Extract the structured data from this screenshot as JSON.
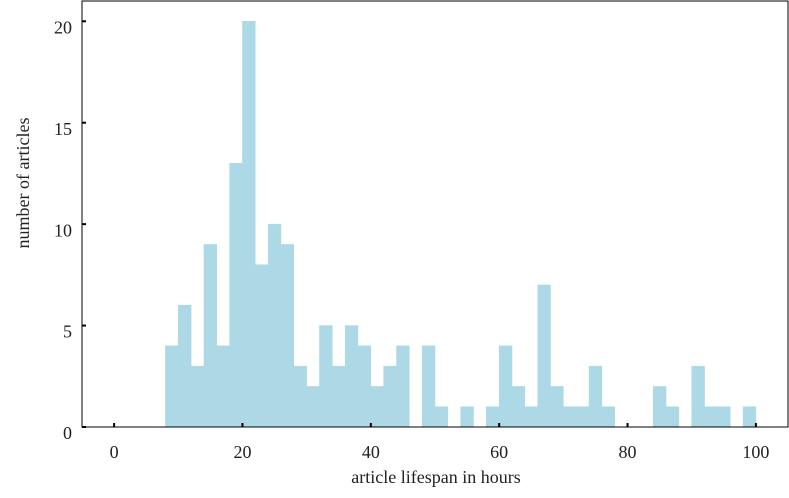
{
  "chart_data": {
    "type": "histogram",
    "xlabel": "article lifespan in hours",
    "ylabel": "number of articles",
    "bins": [
      8,
      10,
      12,
      14,
      16,
      18,
      20,
      22,
      24,
      26,
      28,
      30,
      32,
      34,
      36,
      38,
      40,
      42,
      44,
      46,
      48,
      50,
      52,
      54,
      56,
      58,
      60,
      62,
      64,
      66,
      68,
      70,
      72,
      74,
      76,
      78,
      80,
      82,
      84,
      86,
      88,
      90,
      92,
      94,
      96,
      98,
      100
    ],
    "values": [
      4,
      6,
      3,
      9,
      4,
      13,
      20,
      8,
      10,
      9,
      3,
      2,
      5,
      3,
      5,
      4,
      2,
      3,
      4,
      0,
      4,
      1,
      0,
      1,
      0,
      1,
      4,
      2,
      1,
      7,
      2,
      1,
      1,
      3,
      1,
      0,
      0,
      0,
      2,
      1,
      0,
      3,
      1,
      1,
      0,
      1
    ],
    "color": "#add8e6",
    "xlim": [
      -5,
      105
    ],
    "xticks": [
      0,
      20,
      40,
      60,
      80,
      100
    ],
    "ylim": [
      0,
      21
    ],
    "yticks": [
      0,
      5,
      10,
      15,
      20
    ]
  }
}
